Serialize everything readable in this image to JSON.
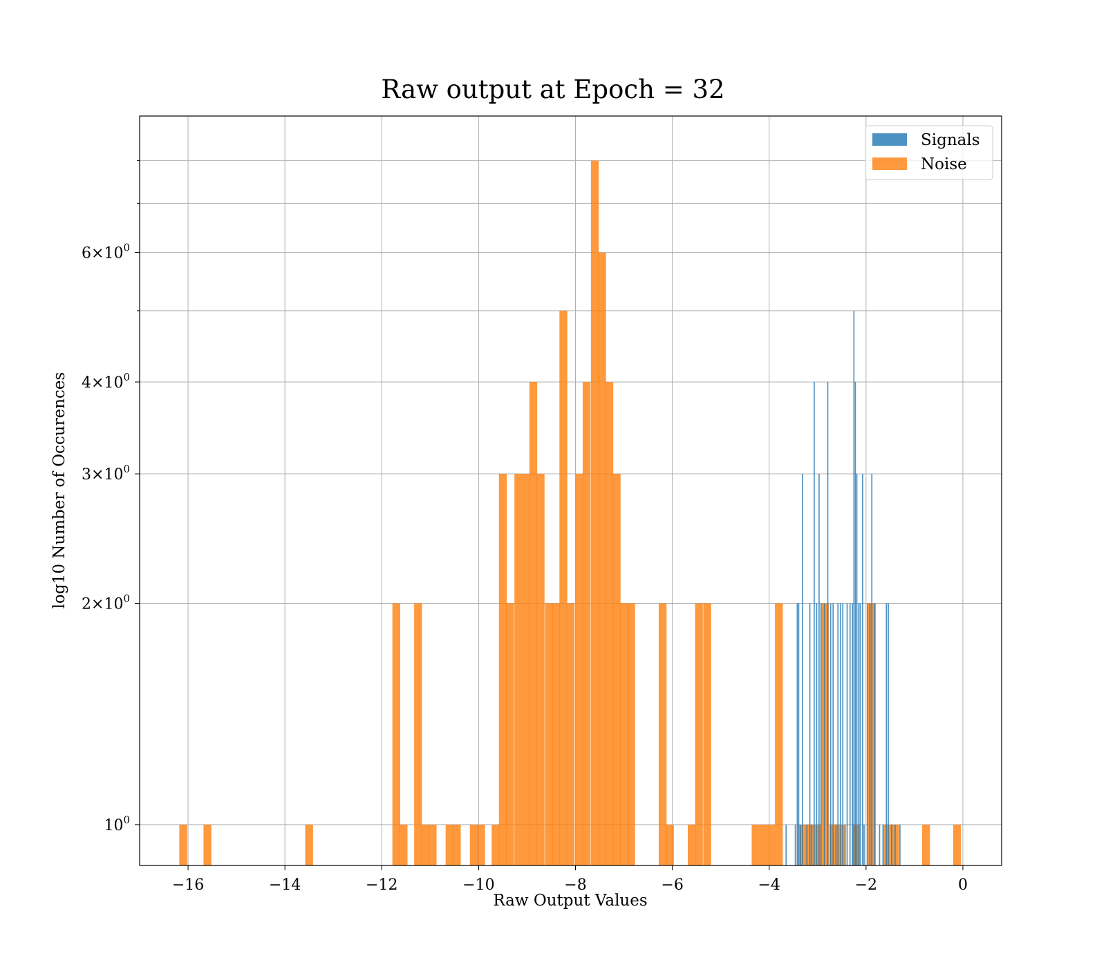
{
  "chart_data": {
    "type": "bar",
    "title": "Raw output at Epoch = 32",
    "xlabel": "Raw Output Values",
    "ylabel": "log10 Number of Occurences",
    "x_scale": "linear",
    "y_scale": "log",
    "xlim": [
      -17,
      0.8
    ],
    "ylim": [
      0.88,
      9.2
    ],
    "grid": true,
    "legend_position": "top-right",
    "xticks": [
      {
        "value": -16,
        "label": "−16"
      },
      {
        "value": -14,
        "label": "−14"
      },
      {
        "value": -12,
        "label": "−12"
      },
      {
        "value": -10,
        "label": "−10"
      },
      {
        "value": -8,
        "label": "−8"
      },
      {
        "value": -6,
        "label": "−6"
      },
      {
        "value": -4,
        "label": "−4"
      },
      {
        "value": -2,
        "label": "−2"
      },
      {
        "value": 0,
        "label": "0"
      }
    ],
    "yticks_major": [
      {
        "value": 1,
        "label": "10",
        "sup": "0"
      },
      {
        "value": 2,
        "label": "2×10",
        "sup": "0"
      },
      {
        "value": 3,
        "label": "3×10",
        "sup": "0"
      },
      {
        "value": 4,
        "label": "4×10",
        "sup": "0"
      },
      {
        "value": 6,
        "label": "6×10",
        "sup": "0"
      }
    ],
    "yticks_minor_grid": [
      5,
      7,
      8
    ],
    "series": [
      {
        "name": "Signals",
        "color": "#1f77b4",
        "alpha": 0.8,
        "bin_width": 0.0238,
        "bins": [
          [
            -3.65,
            1
          ],
          [
            -3.46,
            1
          ],
          [
            -3.42,
            2
          ],
          [
            -3.39,
            2
          ],
          [
            -3.35,
            1
          ],
          [
            -3.31,
            3
          ],
          [
            -3.22,
            1
          ],
          [
            -3.16,
            2
          ],
          [
            -3.12,
            1
          ],
          [
            -3.07,
            4
          ],
          [
            -3.02,
            2
          ],
          [
            -2.97,
            3
          ],
          [
            -2.93,
            2
          ],
          [
            -2.86,
            2
          ],
          [
            -2.79,
            4
          ],
          [
            -2.73,
            2
          ],
          [
            -2.68,
            2
          ],
          [
            -2.62,
            1
          ],
          [
            -2.58,
            2
          ],
          [
            -2.53,
            2
          ],
          [
            -2.48,
            2
          ],
          [
            -2.43,
            1
          ],
          [
            -2.39,
            2
          ],
          [
            -2.33,
            2
          ],
          [
            -2.28,
            2
          ],
          [
            -2.25,
            5
          ],
          [
            -2.22,
            4
          ],
          [
            -2.19,
            3
          ],
          [
            -2.15,
            2
          ],
          [
            -2.12,
            2
          ],
          [
            -2.07,
            3
          ],
          [
            -2.04,
            1
          ],
          [
            -1.97,
            2
          ],
          [
            -1.92,
            2
          ],
          [
            -1.88,
            3
          ],
          [
            -1.82,
            2
          ],
          [
            -1.72,
            1
          ],
          [
            -1.65,
            1
          ],
          [
            -1.58,
            2
          ],
          [
            -1.54,
            2
          ],
          [
            -1.47,
            1
          ],
          [
            -1.4,
            1
          ],
          [
            -1.3,
            1
          ]
        ]
      },
      {
        "name": "Noise",
        "color": "#ff7f0e",
        "alpha": 0.8,
        "bin_width": 0.162,
        "bins": [
          [
            -16.1,
            1
          ],
          [
            -15.6,
            1
          ],
          [
            -13.5,
            1
          ],
          [
            -11.7,
            2
          ],
          [
            -11.55,
            1
          ],
          [
            -11.25,
            2
          ],
          [
            -11.1,
            1
          ],
          [
            -10.95,
            1
          ],
          [
            -10.6,
            1
          ],
          [
            -10.45,
            1
          ],
          [
            -10.1,
            1
          ],
          [
            -9.95,
            1
          ],
          [
            -9.65,
            1
          ],
          [
            -9.5,
            3
          ],
          [
            -9.35,
            2
          ],
          [
            -9.18,
            3
          ],
          [
            -9.02,
            3
          ],
          [
            -8.87,
            4
          ],
          [
            -8.72,
            3
          ],
          [
            -8.55,
            2
          ],
          [
            -8.4,
            2
          ],
          [
            -8.25,
            5
          ],
          [
            -8.1,
            2
          ],
          [
            -7.92,
            3
          ],
          [
            -7.77,
            4
          ],
          [
            -7.6,
            8
          ],
          [
            -7.45,
            6
          ],
          [
            -7.3,
            4
          ],
          [
            -7.15,
            3
          ],
          [
            -7.0,
            2
          ],
          [
            -6.85,
            2
          ],
          [
            -6.2,
            2
          ],
          [
            -6.05,
            1
          ],
          [
            -5.6,
            1
          ],
          [
            -5.45,
            2
          ],
          [
            -5.28,
            2
          ],
          [
            -4.28,
            1
          ],
          [
            -4.12,
            1
          ],
          [
            -3.96,
            1
          ],
          [
            -3.8,
            2
          ],
          [
            -3.32,
            1
          ],
          [
            -3.17,
            1
          ],
          [
            -3.01,
            1
          ],
          [
            -2.85,
            2
          ],
          [
            -2.68,
            1
          ],
          [
            -2.52,
            1
          ],
          [
            -2.2,
            1
          ],
          [
            -1.88,
            2
          ],
          [
            -1.56,
            1
          ],
          [
            -1.4,
            1
          ],
          [
            -0.76,
            1
          ],
          [
            -0.12,
            1
          ]
        ]
      }
    ]
  }
}
